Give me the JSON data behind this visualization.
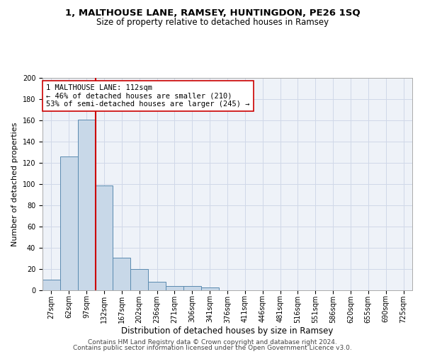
{
  "title_line1": "1, MALTHOUSE LANE, RAMSEY, HUNTINGDON, PE26 1SQ",
  "title_line2": "Size of property relative to detached houses in Ramsey",
  "xlabel": "Distribution of detached houses by size in Ramsey",
  "ylabel": "Number of detached properties",
  "categories": [
    "27sqm",
    "62sqm",
    "97sqm",
    "132sqm",
    "167sqm",
    "202sqm",
    "236sqm",
    "271sqm",
    "306sqm",
    "341sqm",
    "376sqm",
    "411sqm",
    "446sqm",
    "481sqm",
    "516sqm",
    "551sqm",
    "586sqm",
    "620sqm",
    "655sqm",
    "690sqm",
    "725sqm"
  ],
  "values": [
    10,
    126,
    161,
    99,
    31,
    20,
    8,
    4,
    4,
    3,
    0,
    0,
    0,
    0,
    0,
    0,
    0,
    0,
    0,
    0,
    0
  ],
  "bar_color": "#c8d8e8",
  "bar_edge_color": "#5a8ab0",
  "vline_x": 2.5,
  "vline_color": "#cc0000",
  "annotation_text": "1 MALTHOUSE LANE: 112sqm\n← 46% of detached houses are smaller (210)\n53% of semi-detached houses are larger (245) →",
  "annotation_box_color": "white",
  "annotation_box_edge": "#cc0000",
  "ylim": [
    0,
    200
  ],
  "yticks": [
    0,
    20,
    40,
    60,
    80,
    100,
    120,
    140,
    160,
    180,
    200
  ],
  "grid_color": "#d0d8e8",
  "background_color": "#eef2f8",
  "footer_line1": "Contains HM Land Registry data © Crown copyright and database right 2024.",
  "footer_line2": "Contains public sector information licensed under the Open Government Licence v3.0.",
  "title_fontsize": 9.5,
  "subtitle_fontsize": 8.5,
  "axis_label_fontsize": 8,
  "tick_fontsize": 7,
  "annotation_fontsize": 7.5,
  "footer_fontsize": 6.5
}
